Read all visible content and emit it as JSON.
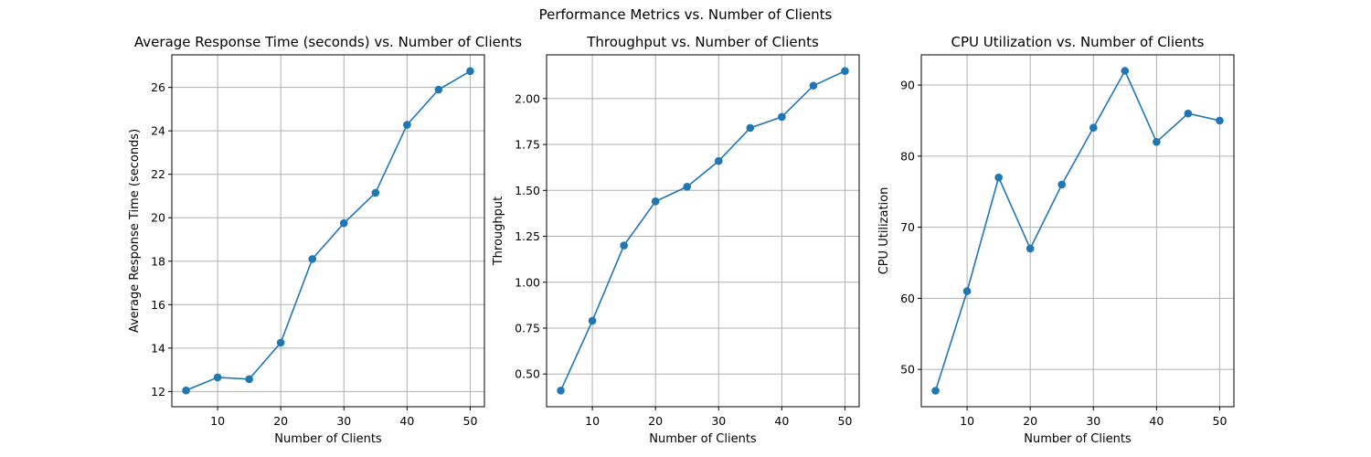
{
  "figure": {
    "suptitle": "Performance Metrics vs. Number of Clients"
  },
  "chart_data": [
    {
      "type": "line",
      "title": "Average Response Time (seconds) vs. Number of Clients",
      "xlabel": "Number of Clients",
      "ylabel": "Average Response Time (seconds)",
      "x": [
        5,
        10,
        15,
        20,
        25,
        30,
        35,
        40,
        45,
        50
      ],
      "y": [
        12.05,
        12.65,
        12.57,
        14.25,
        18.1,
        19.75,
        21.15,
        24.28,
        25.9,
        26.75
      ],
      "xlim": [
        2.75,
        52.25
      ],
      "ylim": [
        11.3,
        27.5
      ],
      "xticks": [
        10,
        20,
        30,
        40,
        50
      ],
      "yticks": [
        12,
        14,
        16,
        18,
        20,
        22,
        24,
        26
      ],
      "ytick_labels": [
        "12",
        "14",
        "16",
        "18",
        "20",
        "22",
        "24",
        "26"
      ],
      "grid": true,
      "marker": "o",
      "color": "#1f77b4"
    },
    {
      "type": "line",
      "title": "Throughput vs. Number of Clients",
      "xlabel": "Number of Clients",
      "ylabel": "Throughput",
      "x": [
        5,
        10,
        15,
        20,
        25,
        30,
        35,
        40,
        45,
        50
      ],
      "y": [
        0.41,
        0.79,
        1.2,
        1.44,
        1.52,
        1.66,
        1.84,
        1.9,
        2.07,
        2.15
      ],
      "xlim": [
        2.75,
        52.25
      ],
      "ylim": [
        0.322,
        2.238
      ],
      "xticks": [
        10,
        20,
        30,
        40,
        50
      ],
      "yticks": [
        0.5,
        0.75,
        1.0,
        1.25,
        1.5,
        1.75,
        2.0
      ],
      "ytick_labels": [
        "0.50",
        "0.75",
        "1.00",
        "1.25",
        "1.50",
        "1.75",
        "2.00"
      ],
      "grid": true,
      "marker": "o",
      "color": "#1f77b4"
    },
    {
      "type": "line",
      "title": "CPU Utilization vs. Number of Clients",
      "xlabel": "Number of Clients",
      "ylabel": "CPU Utilization",
      "x": [
        5,
        10,
        15,
        20,
        25,
        30,
        35,
        40,
        45,
        50
      ],
      "y": [
        47,
        61,
        77,
        67,
        76,
        84,
        92,
        82,
        86,
        85
      ],
      "xlim": [
        2.75,
        52.25
      ],
      "ylim": [
        44.75,
        94.25
      ],
      "xticks": [
        10,
        20,
        30,
        40,
        50
      ],
      "yticks": [
        50,
        60,
        70,
        80,
        90
      ],
      "ytick_labels": [
        "50",
        "60",
        "70",
        "80",
        "90"
      ],
      "grid": true,
      "marker": "o",
      "color": "#1f77b4"
    }
  ]
}
